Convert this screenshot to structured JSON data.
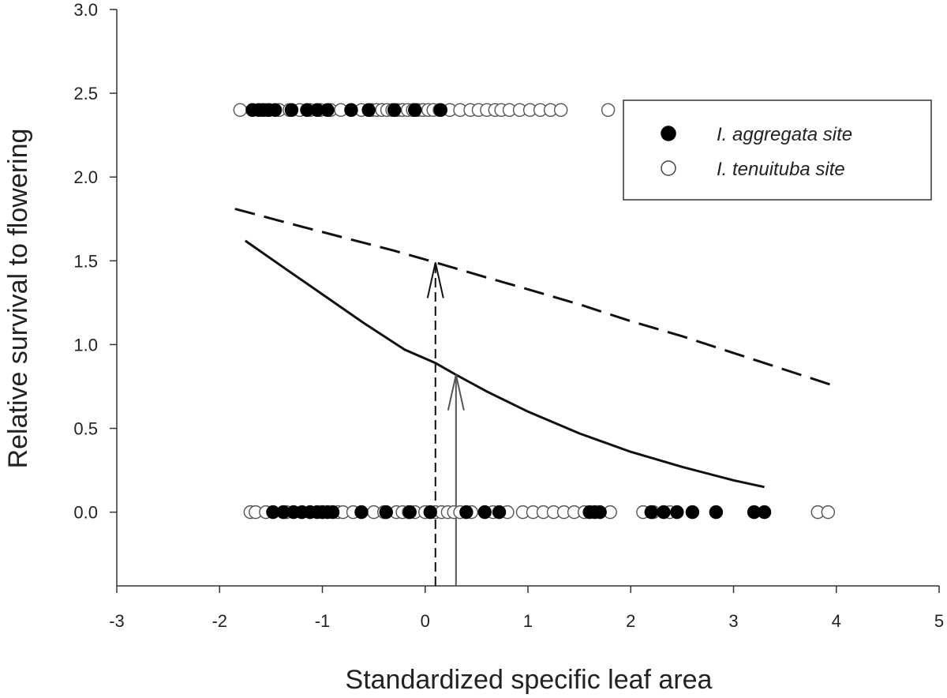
{
  "chart_data": {
    "type": "scatter",
    "title": "",
    "xlabel": "Standardized specific leaf area",
    "ylabel": "Relative survival to flowering",
    "xlim": [
      -3,
      5
    ],
    "ylim": [
      -0.44,
      3.0
    ],
    "xticks": [
      -3,
      -2,
      -1,
      0,
      1,
      2,
      3,
      4,
      5
    ],
    "yticks": [
      0.0,
      0.5,
      1.0,
      1.5,
      2.0,
      2.5,
      3.0
    ],
    "xtick_labels": [
      "-3",
      "-2",
      "-1",
      "0",
      "1",
      "2",
      "3",
      "4",
      "5"
    ],
    "ytick_labels": [
      "0.0",
      "0.5",
      "1.0",
      "1.5",
      "2.0",
      "2.5",
      "3.0"
    ],
    "grid": false,
    "legend_position": "top-right",
    "series": [
      {
        "name": "I. aggregata site",
        "marker": "filled-circle",
        "color": "#000000",
        "points_survived_y": 2.4,
        "points_survived_x": [
          -1.68,
          -1.62,
          -1.58,
          -1.52,
          -1.46,
          -1.3,
          -1.15,
          -1.05,
          -0.95,
          -0.72,
          -0.55,
          -0.3,
          -0.1,
          0.15
        ],
        "points_died_y": 0.0,
        "points_died_x": [
          -1.48,
          -1.38,
          -1.28,
          -1.2,
          -1.12,
          -1.05,
          -1.0,
          -0.95,
          -0.9,
          -0.62,
          -0.38,
          -0.15,
          0.05,
          0.4,
          0.58,
          0.72,
          1.6,
          1.65,
          1.7,
          2.2,
          2.32,
          2.45,
          2.6,
          2.83,
          3.2,
          3.3
        ]
      },
      {
        "name": "I. tenuituba site",
        "marker": "open-circle",
        "color": "#ffffff",
        "points_survived_y": 2.4,
        "points_survived_x": [
          -1.8,
          -1.55,
          -1.42,
          -1.32,
          -1.22,
          -1.12,
          -1.02,
          -0.92,
          -0.82,
          -0.72,
          -0.62,
          -0.52,
          -0.47,
          -0.42,
          -0.37,
          -0.32,
          -0.27,
          -0.22,
          -0.17,
          -0.12,
          -0.07,
          -0.02,
          0.03,
          0.08,
          0.14,
          0.24,
          0.34,
          0.44,
          0.52,
          0.6,
          0.68,
          0.74,
          0.82,
          0.92,
          1.02,
          1.12,
          1.22,
          1.32,
          1.78
        ],
        "points_died_y": 0.0,
        "points_died_x": [
          -1.7,
          -1.65,
          -1.55,
          -1.35,
          -0.85,
          -0.8,
          -0.7,
          -0.5,
          -0.4,
          -0.28,
          -0.22,
          -0.16,
          -0.1,
          0.0,
          0.1,
          0.16,
          0.22,
          0.28,
          0.34,
          0.45,
          0.66,
          0.8,
          0.95,
          1.05,
          1.15,
          1.25,
          1.35,
          1.45,
          1.55,
          1.8,
          2.12,
          2.22,
          2.38,
          3.82,
          3.92
        ]
      },
      {
        "name": "",
        "type": "line",
        "style": "dashed",
        "x": [
          -1.85,
          -1.3,
          -0.8,
          -0.3,
          0.1,
          0.6,
          1.0,
          1.5,
          2.0,
          2.5,
          3.0,
          3.5,
          4.0
        ],
        "y": [
          1.81,
          1.72,
          1.64,
          1.56,
          1.49,
          1.4,
          1.33,
          1.24,
          1.14,
          1.05,
          0.95,
          0.85,
          0.75
        ]
      },
      {
        "name": "",
        "type": "line",
        "style": "solid",
        "x": [
          -1.75,
          -1.4,
          -1.0,
          -0.6,
          -0.2,
          0.1,
          0.3,
          0.6,
          1.0,
          1.5,
          2.0,
          2.5,
          3.0,
          3.3
        ],
        "y": [
          1.62,
          1.47,
          1.3,
          1.13,
          0.97,
          0.89,
          0.82,
          0.72,
          0.6,
          0.47,
          0.36,
          0.27,
          0.19,
          0.15
        ]
      }
    ],
    "annotations": [
      {
        "type": "arrow",
        "style": "dashed",
        "x": 0.1,
        "y_from": -0.44,
        "y_to": 1.49
      },
      {
        "type": "arrow",
        "style": "solid-gray",
        "x": 0.3,
        "y_from": -0.44,
        "y_to": 0.82
      }
    ]
  }
}
